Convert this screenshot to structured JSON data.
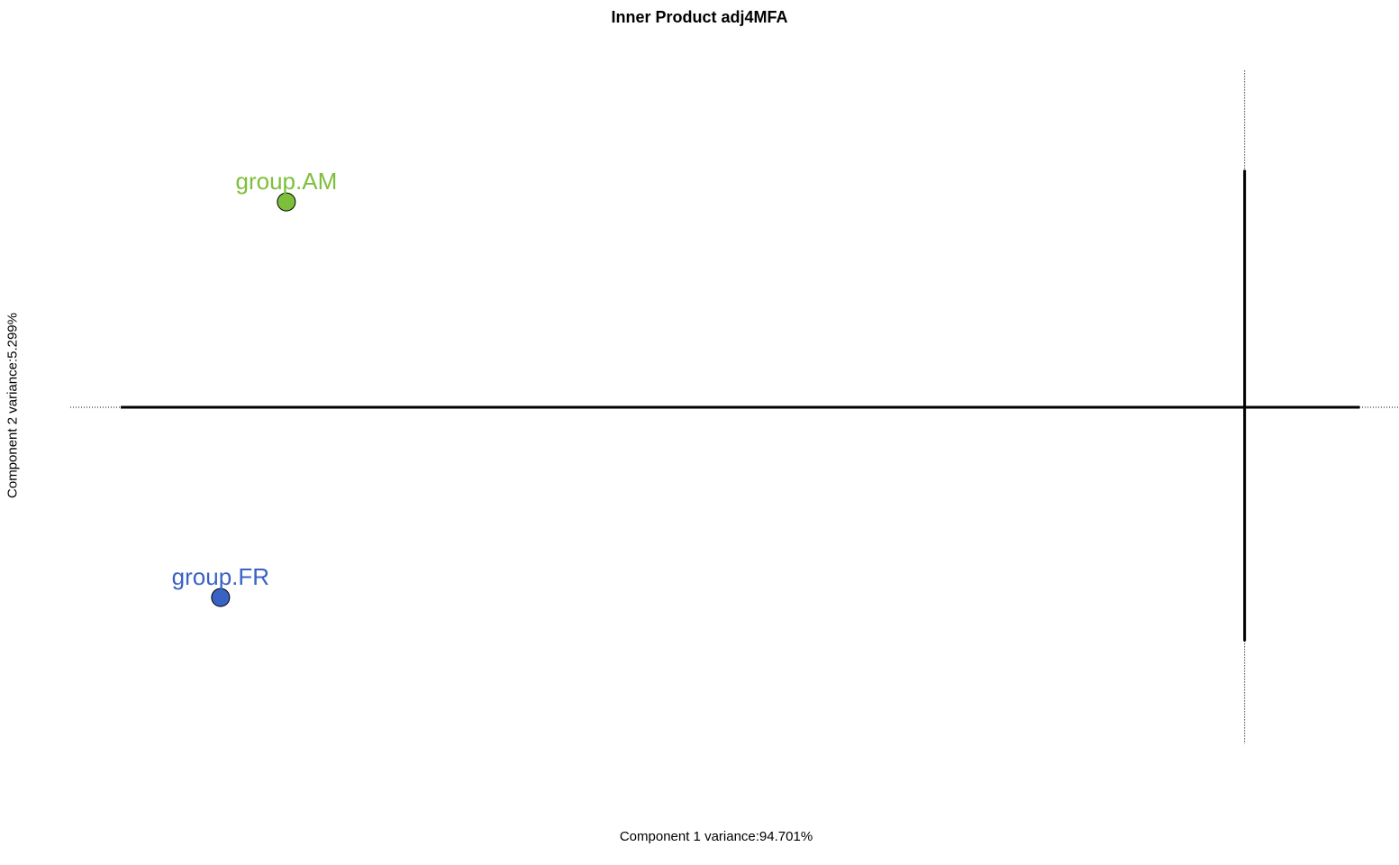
{
  "chart_data": {
    "type": "scatter",
    "title": "Inner Product adj4MFA",
    "xlabel": "Component 1 variance:94.701%",
    "ylabel": "Component 2 variance:5.299%",
    "grid": false,
    "legend": "none",
    "xlim": [
      -1.0,
      0.1
    ],
    "ylim": [
      -0.22,
      0.22
    ],
    "points": [
      {
        "label": "group.AM",
        "x": -0.816,
        "y": 0.122,
        "color": "#7DBF3B"
      },
      {
        "label": "group.FR",
        "x": -0.872,
        "y": -0.113,
        "color": "#3A62C4"
      }
    ],
    "axis_segments": {
      "horizontal_solid": [
        -0.957,
        0.098
      ],
      "horizontal_dotted": [
        -1.0,
        0.136
      ],
      "vertical_solid": [
        -0.139,
        0.141
      ],
      "vertical_dotted": [
        -0.2,
        0.2
      ]
    }
  }
}
